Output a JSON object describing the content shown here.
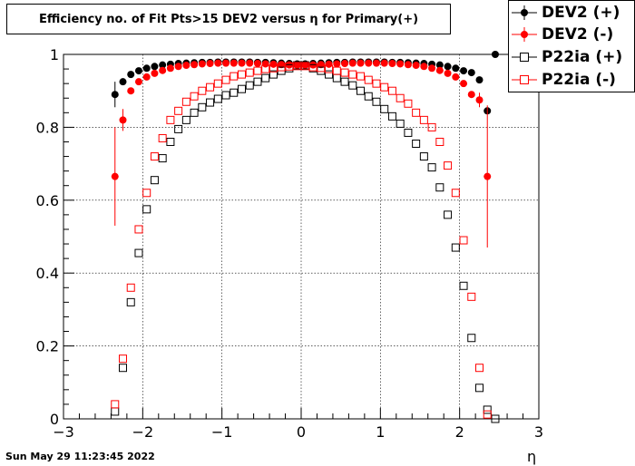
{
  "chart_data": {
    "type": "scatter",
    "title": "Efficiency no. of Fit Pts>15 DEV2 versus η for Primary(+)",
    "xlabel": "η",
    "ylabel": "",
    "xlim": [
      -3,
      3
    ],
    "ylim": [
      0,
      1
    ],
    "grid": true,
    "legend_position": "top-right",
    "x_ticks": [
      "−3",
      "−2",
      "−1",
      "0",
      "1",
      "2",
      "3"
    ],
    "y_ticks": [
      "0",
      "0.2",
      "0.4",
      "0.6",
      "0.8",
      "1"
    ],
    "timestamp": "Sun May 29 11:23:45 2022",
    "series": [
      {
        "name": "DEV2 (+)",
        "color": "#000000",
        "marker": "filled-circle",
        "x": [
          -2.35,
          -2.25,
          -2.15,
          -2.05,
          -1.95,
          -1.85,
          -1.75,
          -1.65,
          -1.55,
          -1.45,
          -1.35,
          -1.25,
          -1.15,
          -1.05,
          -0.95,
          -0.85,
          -0.75,
          -0.65,
          -0.55,
          -0.45,
          -0.35,
          -0.25,
          -0.15,
          -0.05,
          0.05,
          0.15,
          0.25,
          0.35,
          0.45,
          0.55,
          0.65,
          0.75,
          0.85,
          0.95,
          1.05,
          1.15,
          1.25,
          1.35,
          1.45,
          1.55,
          1.65,
          1.75,
          1.85,
          1.95,
          2.05,
          2.15,
          2.25,
          2.35,
          2.45
        ],
        "y": [
          0.89,
          0.925,
          0.945,
          0.955,
          0.962,
          0.967,
          0.971,
          0.973,
          0.975,
          0.976,
          0.977,
          0.978,
          0.978,
          0.979,
          0.979,
          0.979,
          0.979,
          0.979,
          0.978,
          0.978,
          0.977,
          0.976,
          0.975,
          0.974,
          0.974,
          0.975,
          0.976,
          0.977,
          0.978,
          0.978,
          0.979,
          0.979,
          0.979,
          0.979,
          0.979,
          0.978,
          0.978,
          0.977,
          0.976,
          0.975,
          0.973,
          0.971,
          0.967,
          0.962,
          0.955,
          0.95,
          0.93,
          0.845,
          1.0
        ],
        "err": [
          0.035,
          0,
          0,
          0,
          0,
          0,
          0,
          0,
          0,
          0,
          0,
          0,
          0,
          0,
          0,
          0,
          0,
          0,
          0,
          0,
          0,
          0,
          0,
          0,
          0,
          0,
          0,
          0,
          0,
          0,
          0,
          0,
          0,
          0,
          0,
          0,
          0,
          0,
          0,
          0,
          0,
          0,
          0,
          0,
          0,
          0,
          0,
          0,
          0
        ]
      },
      {
        "name": "DEV2 (-)",
        "color": "#ff0000",
        "marker": "filled-circle",
        "x": [
          -2.35,
          -2.25,
          -2.15,
          -2.05,
          -1.95,
          -1.85,
          -1.75,
          -1.65,
          -1.55,
          -1.45,
          -1.35,
          -1.25,
          -1.15,
          -1.05,
          -0.95,
          -0.85,
          -0.75,
          -0.65,
          -0.55,
          -0.45,
          -0.35,
          -0.25,
          -0.15,
          -0.05,
          0.05,
          0.15,
          0.25,
          0.35,
          0.45,
          0.55,
          0.65,
          0.75,
          0.85,
          0.95,
          1.05,
          1.15,
          1.25,
          1.35,
          1.45,
          1.55,
          1.65,
          1.75,
          1.85,
          1.95,
          2.05,
          2.15,
          2.25,
          2.35
        ],
        "y": [
          0.665,
          0.82,
          0.9,
          0.925,
          0.938,
          0.948,
          0.956,
          0.962,
          0.967,
          0.97,
          0.972,
          0.974,
          0.975,
          0.976,
          0.976,
          0.976,
          0.976,
          0.976,
          0.975,
          0.974,
          0.973,
          0.972,
          0.971,
          0.97,
          0.97,
          0.971,
          0.972,
          0.973,
          0.974,
          0.975,
          0.976,
          0.976,
          0.976,
          0.976,
          0.976,
          0.975,
          0.974,
          0.972,
          0.97,
          0.967,
          0.962,
          0.956,
          0.948,
          0.938,
          0.92,
          0.89,
          0.875,
          0.665
        ],
        "err": [
          0.135,
          0.03,
          0,
          0,
          0,
          0,
          0,
          0,
          0,
          0,
          0,
          0,
          0,
          0,
          0,
          0,
          0,
          0,
          0,
          0,
          0,
          0,
          0,
          0,
          0,
          0,
          0,
          0,
          0,
          0,
          0,
          0,
          0,
          0,
          0,
          0,
          0,
          0,
          0,
          0,
          0,
          0,
          0,
          0,
          0,
          0,
          0.02,
          0.195
        ]
      },
      {
        "name": "P22ia (+)",
        "color": "#000000",
        "marker": "open-square",
        "x": [
          -2.35,
          -2.25,
          -2.15,
          -2.05,
          -1.95,
          -1.85,
          -1.75,
          -1.65,
          -1.55,
          -1.45,
          -1.35,
          -1.25,
          -1.15,
          -1.05,
          -0.95,
          -0.85,
          -0.75,
          -0.65,
          -0.55,
          -0.45,
          -0.35,
          -0.25,
          -0.15,
          -0.05,
          0.05,
          0.15,
          0.25,
          0.35,
          0.45,
          0.55,
          0.65,
          0.75,
          0.85,
          0.95,
          1.05,
          1.15,
          1.25,
          1.35,
          1.45,
          1.55,
          1.65,
          1.75,
          1.85,
          1.95,
          2.05,
          2.15,
          2.25,
          2.35,
          2.45
        ],
        "y": [
          0.02,
          0.14,
          0.32,
          0.455,
          0.575,
          0.655,
          0.715,
          0.76,
          0.795,
          0.82,
          0.84,
          0.855,
          0.868,
          0.878,
          0.888,
          0.895,
          0.905,
          0.915,
          0.925,
          0.935,
          0.945,
          0.955,
          0.962,
          0.97,
          0.97,
          0.962,
          0.955,
          0.945,
          0.935,
          0.925,
          0.915,
          0.9,
          0.885,
          0.87,
          0.85,
          0.83,
          0.81,
          0.785,
          0.755,
          0.72,
          0.69,
          0.635,
          0.56,
          0.47,
          0.365,
          0.222,
          0.085,
          0.025,
          0.0
        ]
      },
      {
        "name": "P22ia (-)",
        "color": "#ff0000",
        "marker": "open-square",
        "x": [
          -2.35,
          -2.25,
          -2.15,
          -2.05,
          -1.95,
          -1.85,
          -1.75,
          -1.65,
          -1.55,
          -1.45,
          -1.35,
          -1.25,
          -1.15,
          -1.05,
          -0.95,
          -0.85,
          -0.75,
          -0.65,
          -0.55,
          -0.45,
          -0.35,
          -0.25,
          -0.15,
          -0.05,
          0.05,
          0.15,
          0.25,
          0.35,
          0.45,
          0.55,
          0.65,
          0.75,
          0.85,
          0.95,
          1.05,
          1.15,
          1.25,
          1.35,
          1.45,
          1.55,
          1.65,
          1.75,
          1.85,
          1.95,
          2.05,
          2.15,
          2.25,
          2.35
        ],
        "y": [
          0.04,
          0.165,
          0.36,
          0.52,
          0.62,
          0.72,
          0.77,
          0.82,
          0.845,
          0.87,
          0.885,
          0.9,
          0.91,
          0.92,
          0.93,
          0.94,
          0.945,
          0.95,
          0.955,
          0.96,
          0.962,
          0.965,
          0.967,
          0.968,
          0.968,
          0.965,
          0.963,
          0.96,
          0.955,
          0.95,
          0.945,
          0.94,
          0.93,
          0.92,
          0.91,
          0.9,
          0.88,
          0.865,
          0.84,
          0.82,
          0.8,
          0.76,
          0.695,
          0.62,
          0.49,
          0.335,
          0.14,
          0.012
        ]
      }
    ]
  }
}
